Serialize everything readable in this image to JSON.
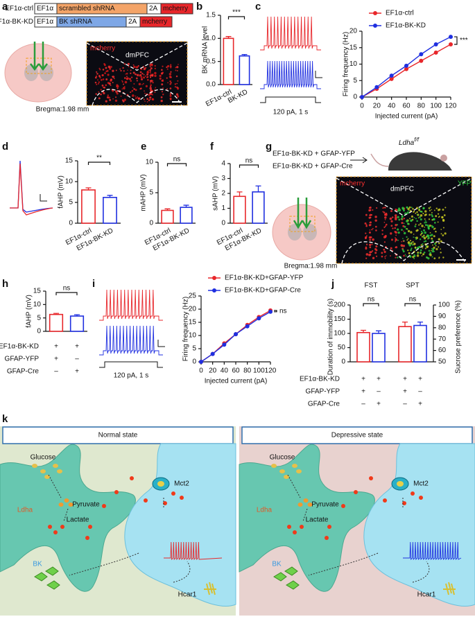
{
  "panels": [
    "a",
    "b",
    "c",
    "d",
    "e",
    "f",
    "g",
    "h",
    "i",
    "j",
    "k"
  ],
  "panel_a": {
    "constructs": [
      {
        "name": "EF1α-ctrl",
        "parts": [
          "EF1α",
          "scrambled shRNA",
          "2A",
          "mcherry"
        ]
      },
      {
        "name": "EF1α-BK-KD",
        "parts": [
          "EF1α",
          "BK  shRNA",
          "2A",
          "mcherry"
        ]
      }
    ],
    "image_labels": [
      "mcherry",
      "dmPFC"
    ],
    "bregma": "Bregma:1.98 mm"
  },
  "panel_c": {
    "stimulus": "120 pA, 1 s"
  },
  "panel_g": {
    "groups": [
      "EF1α-BK-KD + GFAP-YFP",
      "EF1α-BK-KD + GFAP-Cre"
    ],
    "mouse_label": "Ldha",
    "mouse_label_sup": "f/f",
    "image_labels": [
      "mcherry",
      "dmPFC",
      "YFP"
    ],
    "bregma": "Bregma:1.98 mm"
  },
  "panel_i": {
    "stimulus": "120 pA, 1 s"
  },
  "chart_data": [
    {
      "type": "bar",
      "ylabel": "BK mRNA level",
      "categories": [
        "EF1α-ctrl",
        "BK-KD"
      ],
      "values": [
        1,
        0.62
      ],
      "errors": [
        0.04,
        0.03
      ],
      "colors": [
        "#e8262a",
        "#1f2fe0"
      ],
      "ylim": [
        0,
        1.5
      ],
      "yticks": [
        {
          "value": 0,
          "label": "0.0"
        },
        {
          "value": 0.5,
          "label": "0.5"
        },
        {
          "value": 1,
          "label": "1.0"
        },
        {
          "value": 1.5,
          "label": "1.5"
        }
      ],
      "annotation": "***"
    },
    {
      "type": "line",
      "xlabel": "Injected current (pA)",
      "ylabel": "Firing frequency (Hz)",
      "x": [
        0,
        20,
        40,
        60,
        80,
        100,
        120
      ],
      "series": [
        {
          "name": "EF1α-ctrl",
          "color": "#e8262a",
          "values": [
            0,
            2.5,
            5.5,
            8.5,
            11,
            13.5,
            16
          ]
        },
        {
          "name": "EF1α-BK-KD",
          "color": "#1f2fe0",
          "values": [
            0,
            3,
            6.5,
            9.5,
            13,
            16,
            18.3
          ]
        }
      ],
      "xlim": [
        0,
        120
      ],
      "xticks": [
        0,
        20,
        40,
        60,
        80,
        100,
        120
      ],
      "ylim": [
        0,
        20
      ],
      "yticks": [
        0,
        5,
        10,
        15,
        20
      ],
      "annotation": "***",
      "legend": "top-left"
    },
    {
      "type": "bar",
      "ylabel": "fAHP (mV)",
      "categories": [
        "EF1α-ctrl",
        "EF1α-BK-KD"
      ],
      "values": [
        8,
        6.2
      ],
      "errors": [
        0.5,
        0.5
      ],
      "colors": [
        "#e8262a",
        "#1f2fe0"
      ],
      "ylim": [
        0,
        15
      ],
      "yticks": [
        0,
        5,
        10,
        15
      ],
      "annotation": "**"
    },
    {
      "type": "bar",
      "ylabel": "mAHP (mV)",
      "categories": [
        "EF1α-ctrl",
        "EF1α-BK-KD"
      ],
      "values": [
        2.1,
        2.6
      ],
      "errors": [
        0.25,
        0.35
      ],
      "colors": [
        "#e8262a",
        "#1f2fe0"
      ],
      "ylim": [
        0,
        10
      ],
      "yticks": [
        0,
        5,
        10
      ],
      "annotation": "ns"
    },
    {
      "type": "bar",
      "ylabel": "sAHP (mV)",
      "categories": [
        "EF1α-ctrl",
        "EF1α-BK-KD"
      ],
      "values": [
        1.8,
        2.1
      ],
      "errors": [
        0.3,
        0.4
      ],
      "colors": [
        "#e8262a",
        "#1f2fe0"
      ],
      "ylim": [
        0,
        4
      ],
      "yticks": [
        0,
        1,
        2,
        3,
        4
      ],
      "annotation": "ns"
    },
    {
      "type": "bar",
      "ylabel": "fAHP (mV)",
      "values": [
        6.3,
        5.7
      ],
      "errors": [
        0.4,
        0.5
      ],
      "colors": [
        "#e8262a",
        "#1f2fe0"
      ],
      "ylim": [
        0,
        15
      ],
      "yticks": [
        0,
        5,
        10,
        15
      ],
      "annotation": "ns",
      "rows": [
        {
          "label": "EF1α-BK-KD",
          "signs": [
            "+",
            "+"
          ]
        },
        {
          "label": "GFAP-YFP",
          "signs": [
            "+",
            "–"
          ]
        },
        {
          "label": "GFAP-Cre",
          "signs": [
            "–",
            "+"
          ]
        }
      ]
    },
    {
      "type": "line",
      "xlabel": "Injected current (pA)",
      "ylabel": "Firing frequency (Hz)",
      "x": [
        0,
        20,
        40,
        60,
        80,
        100,
        120
      ],
      "series": [
        {
          "name": "EF1α-BK-KD+GFAP-YFP",
          "color": "#e8262a",
          "values": [
            0,
            3,
            7,
            10.5,
            14,
            17,
            19.5
          ]
        },
        {
          "name": "EF1α-BK-KD+GFAP-Cre",
          "color": "#1f2fe0",
          "values": [
            0,
            3,
            6.5,
            10.5,
            13.5,
            16.5,
            19
          ]
        }
      ],
      "xlim": [
        0,
        120
      ],
      "xticks": [
        0,
        20,
        40,
        60,
        80,
        100,
        120
      ],
      "ylim": [
        0,
        25
      ],
      "yticks": [
        0,
        5,
        10,
        15,
        20,
        25
      ],
      "annotation": "ns",
      "legend": "top-left"
    },
    {
      "type": "dual-bar",
      "ylabel": "Duration of immobility (s)",
      "y2label": "Sucrose preference (%)",
      "colors": [
        "#e8262a",
        "#1f2fe0"
      ],
      "groups": [
        {
          "label": "FST",
          "axis": "y",
          "values": [
            103,
            100
          ],
          "errors": [
            8,
            9
          ],
          "annotation": "ns"
        },
        {
          "label": "SPT",
          "axis": "y2",
          "values": [
            81,
            82
          ],
          "errors": [
            4,
            3
          ],
          "annotation": "ns"
        }
      ],
      "ylim": [
        0,
        200
      ],
      "yticks": [
        0,
        50,
        100,
        150,
        200
      ],
      "y2lim": [
        50,
        100
      ],
      "y2ticks": [
        50,
        60,
        70,
        80,
        90,
        100
      ],
      "rows": [
        {
          "label": "EF1α-BK-KD",
          "signs": [
            "+",
            "+",
            "+",
            "+"
          ]
        },
        {
          "label": "GFAP-YFP",
          "signs": [
            "+",
            "–",
            "+",
            "–"
          ]
        },
        {
          "label": "GFAP-Cre",
          "signs": [
            "–",
            "+",
            "–",
            "+"
          ]
        }
      ]
    }
  ],
  "schematic": [
    {
      "title": "Normal state",
      "labels": {
        "glucose": "Glucose",
        "ldha": "Ldha",
        "pyruvate": "Pyruvate",
        "lactate": "Lactate",
        "mct2": "Mct2",
        "bk": "BK",
        "hcar1": "Hcar1"
      }
    },
    {
      "title": "Depressive state",
      "labels": {
        "glucose": "Glucose",
        "ldha": "Ldha",
        "pyruvate": "Pyruvate",
        "lactate": "Lactate",
        "mct2": "Mct2",
        "bk": "BK",
        "hcar1": "Hcar1"
      }
    }
  ]
}
